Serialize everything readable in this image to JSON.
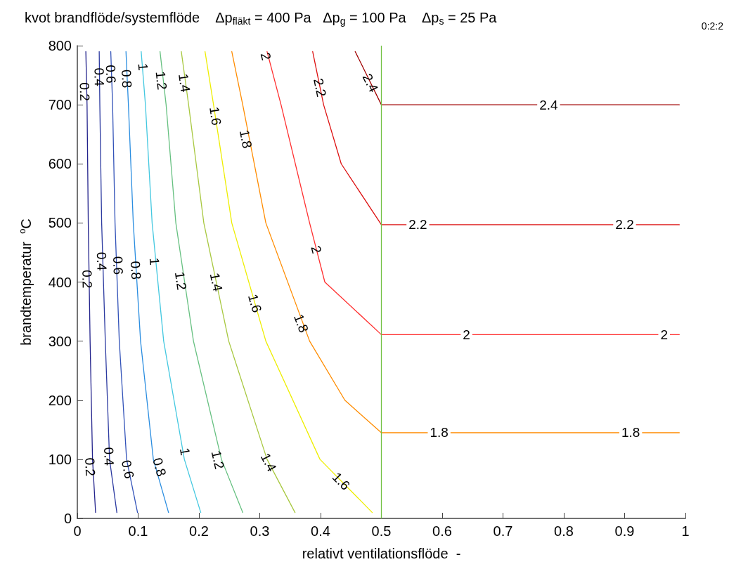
{
  "chart_data": {
    "type": "line",
    "title": "kvot brandflöde/systemflöde    Δp$_{fläkt}$ = 400 Pa   Δp$_{g}$ = 100 Pa    Δp$_{s}$ = 25 Pa",
    "xlabel": "relativt ventilationsflöde  -",
    "ylabel": "brandtemperatur  $^{o}$C",
    "xlim": [
      0,
      1
    ],
    "xticks": [
      0,
      0.1,
      0.2,
      0.3,
      0.4,
      0.5,
      0.6,
      0.7,
      0.8,
      0.9,
      1
    ],
    "ylim": [
      0,
      800
    ],
    "yticks": [
      0,
      100,
      200,
      300,
      400,
      500,
      600,
      700,
      800
    ],
    "grid": false,
    "marker": "none",
    "line_style": "solid",
    "series": [
      {
        "color": "#23238c",
        "x": [
          0.014,
          0.016,
          0.018,
          0.021,
          0.025,
          0.03
        ],
        "values": [
          790,
          700,
          500,
          300,
          100,
          10
        ]
      },
      {
        "color": "#2c3aa0",
        "x": [
          0.036,
          0.037,
          0.04,
          0.046,
          0.053,
          0.065
        ],
        "values": [
          790,
          700,
          500,
          300,
          100,
          10
        ]
      },
      {
        "color": "#3252b8",
        "x": [
          0.055,
          0.058,
          0.062,
          0.069,
          0.081,
          0.099
        ],
        "values": [
          790,
          700,
          500,
          300,
          100,
          10
        ]
      },
      {
        "color": "#2a8de0",
        "x": [
          0.08,
          0.084,
          0.092,
          0.104,
          0.125,
          0.15
        ],
        "values": [
          790,
          700,
          500,
          300,
          100,
          10
        ]
      },
      {
        "color": "#44c8e0",
        "x": [
          0.105,
          0.112,
          0.123,
          0.142,
          0.176,
          0.203
        ],
        "values": [
          790,
          700,
          500,
          300,
          100,
          10
        ]
      },
      {
        "color": "#66c080",
        "x": [
          0.136,
          0.146,
          0.162,
          0.191,
          0.237,
          0.272
        ],
        "values": [
          790,
          700,
          500,
          300,
          100,
          10
        ]
      },
      {
        "color": "#a8c840",
        "x": [
          0.171,
          0.183,
          0.208,
          0.249,
          0.312,
          0.358
        ],
        "values": [
          790,
          700,
          500,
          300,
          100,
          10
        ]
      },
      {
        "color": "#eeee00",
        "x": [
          0.21,
          0.224,
          0.254,
          0.31,
          0.399,
          0.485
        ],
        "values": [
          790,
          700,
          500,
          300,
          100,
          10
        ]
      },
      {
        "color": "#ff8c00",
        "x": [
          0.254,
          0.272,
          0.31,
          0.382,
          0.44,
          0.5,
          0.99
        ],
        "values": [
          790,
          700,
          500,
          300,
          200,
          145,
          145
        ]
      },
      {
        "color": "#ff3030",
        "x": [
          0.312,
          0.335,
          0.382,
          0.407,
          0.5,
          0.99
        ],
        "values": [
          790,
          700,
          500,
          400,
          311,
          311
        ]
      },
      {
        "color": "#dd1010",
        "x": [
          0.387,
          0.405,
          0.434,
          0.5,
          0.99
        ],
        "values": [
          790,
          700,
          600,
          497,
          497
        ]
      },
      {
        "color": "#a00000",
        "x": [
          0.457,
          0.5,
          0.99
        ],
        "values": [
          790,
          700,
          700
        ]
      }
    ],
    "ref_lines": [
      {
        "axis": "x",
        "value": 0.5,
        "color": "#70c040"
      }
    ],
    "annotations": [
      "0:2:2",
      {
        "text": "0.2",
        "x": 0.012,
        "y": 722
      },
      {
        "text": "0.2",
        "x": 0.016,
        "y": 405
      },
      {
        "text": "0.2",
        "x": 0.021,
        "y": 87
      },
      {
        "text": "0.4",
        "x": 0.036,
        "y": 747
      },
      {
        "text": "0.4",
        "x": 0.04,
        "y": 435
      },
      {
        "text": "0.4",
        "x": 0.052,
        "y": 105
      },
      {
        "text": "0.6",
        "x": 0.055,
        "y": 752
      },
      {
        "text": "0.6",
        "x": 0.067,
        "y": 428
      },
      {
        "text": "0.6",
        "x": 0.083,
        "y": 83
      },
      {
        "text": "0.8",
        "x": 0.081,
        "y": 744
      },
      {
        "text": "0.8",
        "x": 0.096,
        "y": 420
      },
      {
        "text": "0.8",
        "x": 0.135,
        "y": 87
      },
      {
        "text": "1",
        "x": 0.108,
        "y": 764
      },
      {
        "text": "1",
        "x": 0.127,
        "y": 435
      },
      {
        "text": "1",
        "x": 0.177,
        "y": 113
      },
      {
        "text": "1.2",
        "x": 0.138,
        "y": 741
      },
      {
        "text": "1.2",
        "x": 0.17,
        "y": 402
      },
      {
        "text": "1.2",
        "x": 0.231,
        "y": 99
      },
      {
        "text": "1.4",
        "x": 0.176,
        "y": 737
      },
      {
        "text": "1.4",
        "x": 0.2285,
        "y": 400
      },
      {
        "text": "1.4",
        "x": 0.3146,
        "y": 95
      },
      {
        "text": "1.6",
        "x": 0.227,
        "y": 681
      },
      {
        "text": "1.6",
        "x": 0.292,
        "y": 364
      },
      {
        "text": "1.6",
        "x": 0.434,
        "y": 63
      },
      {
        "text": "1.8",
        "x": 0.277,
        "y": 642
      },
      {
        "text": "1.8",
        "x": 0.368,
        "y": 330
      },
      {
        "text": "1.8",
        "x": 0.595,
        "y": 146
      },
      {
        "text": "1.8",
        "x": 0.91,
        "y": 146
      },
      {
        "text": "2",
        "x": 0.31,
        "y": 782
      },
      {
        "text": "2",
        "x": 0.393,
        "y": 455
      },
      {
        "text": "2",
        "x": 0.64,
        "y": 311
      },
      {
        "text": "2",
        "x": 0.965,
        "y": 311
      },
      {
        "text": "2.2",
        "x": 0.399,
        "y": 729
      },
      {
        "text": "2.2",
        "x": 0.56,
        "y": 497
      },
      {
        "text": "2.2",
        "x": 0.9,
        "y": 497
      },
      {
        "text": "2.4",
        "x": 0.482,
        "y": 737
      },
      {
        "text": "2.4",
        "x": 0.775,
        "y": 700
      }
    ]
  }
}
